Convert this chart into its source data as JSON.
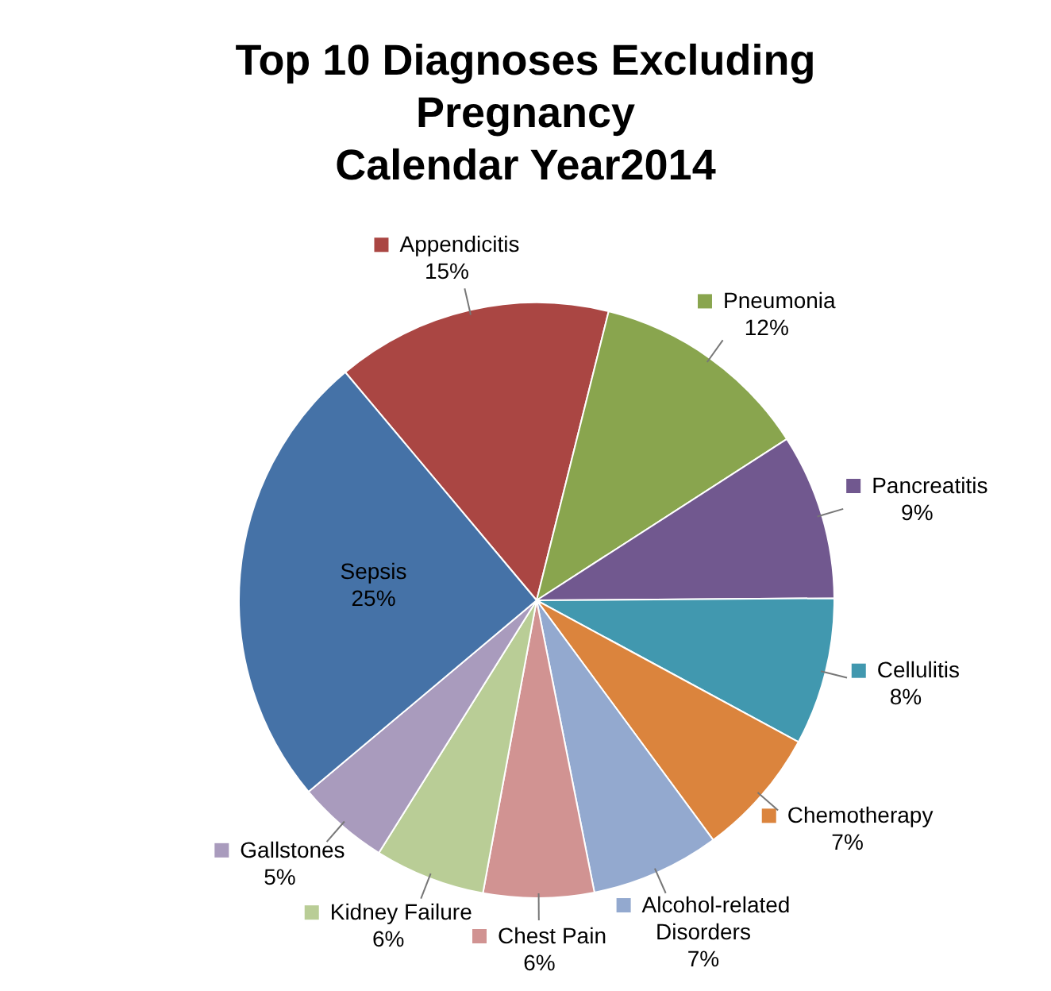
{
  "chart_data": {
    "type": "pie",
    "title": "Top 10 Diagnoses Excluding\nPregnancy\nCalendar Year2014",
    "categories": [
      "Appendicitis",
      "Pneumonia",
      "Pancreatitis",
      "Cellulitis",
      "Chemotherapy",
      "Alcohol-related Disorders",
      "Chest Pain",
      "Kidney Failure",
      "Gallstones",
      "Sepsis"
    ],
    "values": [
      15,
      12,
      9,
      8,
      7,
      7,
      6,
      6,
      5,
      25
    ],
    "colors": [
      "#aa4643",
      "#89a54e",
      "#71588f",
      "#4198af",
      "#db843d",
      "#93a9cf",
      "#d19392",
      "#b9cd96",
      "#a99bbd",
      "#4572a7"
    ],
    "legend": "right",
    "value_labels": [
      "15%",
      "12%",
      "9%",
      "8%",
      "7%",
      "7%",
      "6%",
      "6%",
      "5%",
      "25%"
    ]
  }
}
